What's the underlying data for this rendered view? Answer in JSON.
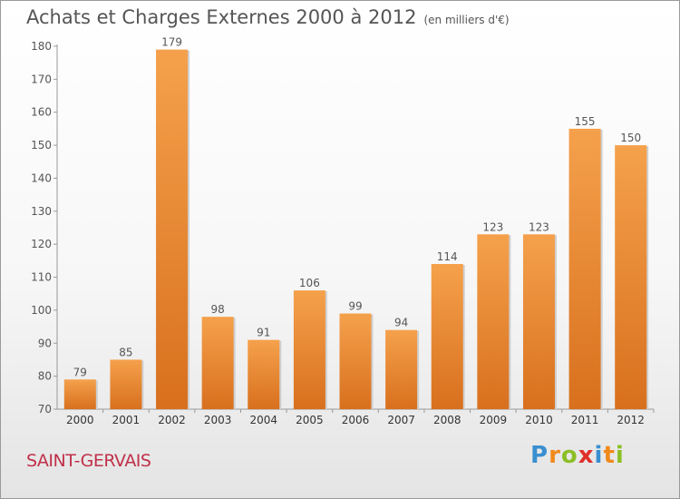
{
  "title": "Achats et Charges Externes 2000 à 2012",
  "subtitle": "(en milliers d'€)",
  "commune": "SAINT-GERVAIS",
  "logo": {
    "text": "Proxiti",
    "letters": [
      {
        "char": "P",
        "color": "#3a8fd0"
      },
      {
        "char": "r",
        "color": "#f08a1c"
      },
      {
        "char": "o",
        "color": "#8cbf26"
      },
      {
        "char": "x",
        "color": "#e0302a"
      },
      {
        "char": "i",
        "color": "#3a8fd0"
      },
      {
        "char": "t",
        "color": "#f08a1c"
      },
      {
        "char": "i",
        "color": "#8cbf26"
      }
    ]
  },
  "colors": {
    "bar_top": "#f5a14c",
    "bar_bottom": "#d8701e",
    "commune": "#c0304a",
    "text": "#555555"
  },
  "chart_data": {
    "type": "bar",
    "title": "Achats et Charges Externes 2000 à 2012",
    "subtitle": "(en milliers d'€)",
    "categories": [
      "2000",
      "2001",
      "2002",
      "2003",
      "2004",
      "2005",
      "2006",
      "2007",
      "2008",
      "2009",
      "2010",
      "2011",
      "2012"
    ],
    "values": [
      79,
      85,
      179,
      98,
      91,
      106,
      99,
      94,
      114,
      123,
      123,
      155,
      150
    ],
    "ylim": [
      70,
      180
    ],
    "yticks": [
      70,
      80,
      90,
      100,
      110,
      120,
      130,
      140,
      150,
      160,
      170,
      180
    ],
    "grid": false,
    "legend": "none",
    "xlabel": "",
    "ylabel": ""
  }
}
